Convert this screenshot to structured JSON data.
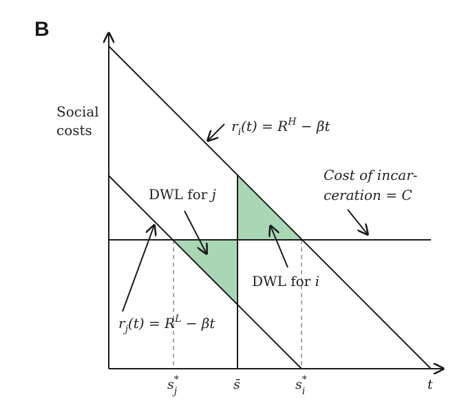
{
  "panel_label": "B",
  "y_axis_label": [
    "Social",
    "costs"
  ],
  "x_axis_label": "t",
  "curve_i_label": {
    "lhs": "r",
    "sub": "i",
    "mid": "(t) = R",
    "sup": "H",
    "rhs": " − βt"
  },
  "curve_j_label": {
    "lhs": "r",
    "sub": "j",
    "mid": "(t) = R",
    "sup": "L",
    "rhs": " − βt"
  },
  "cost_label": [
    "Cost of incar-",
    "ceration = C"
  ],
  "dwl_j": {
    "text": "DWL for ",
    "var": "j"
  },
  "dwl_i": {
    "text": "DWL for ",
    "var": "i"
  },
  "ticks": {
    "sj": {
      "base": "s",
      "sub": "j",
      "sup": "*"
    },
    "sbar": {
      "base": "s̄"
    },
    "si": {
      "base": "s",
      "sub": "i",
      "sup": "*"
    }
  },
  "colors": {
    "axis": "#1a1a1a",
    "line": "#1a1a1a",
    "shade": "#a9d7b5",
    "dashed": "#8a8a8a"
  }
}
